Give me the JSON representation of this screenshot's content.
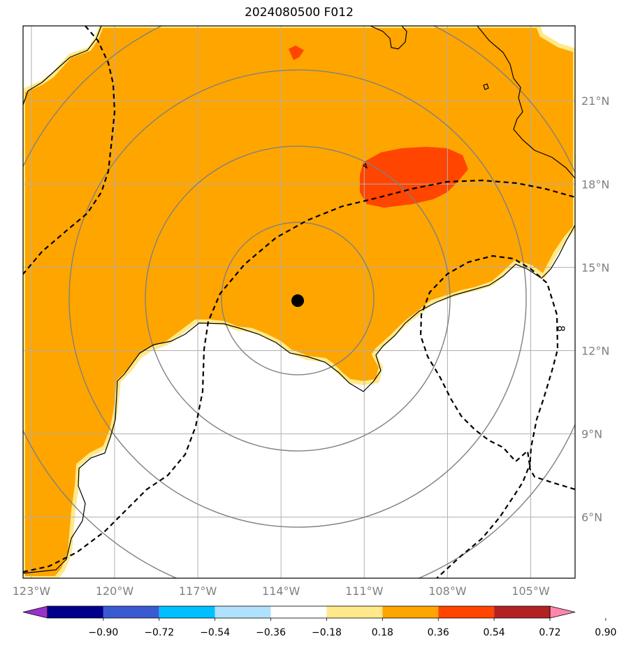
{
  "title": "2024080500 F012",
  "map": {
    "lon_range": [
      -123.3,
      -103.4
    ],
    "lat_range": [
      3.8,
      23.7
    ],
    "lon_ticks": [
      {
        "value": -123,
        "label": "123°W"
      },
      {
        "value": -120,
        "label": "120°W"
      },
      {
        "value": -117,
        "label": "117°W"
      },
      {
        "value": -114,
        "label": "114°W"
      },
      {
        "value": -111,
        "label": "111°W"
      },
      {
        "value": -108,
        "label": "108°W"
      },
      {
        "value": -105,
        "label": "105°W"
      }
    ],
    "lat_ticks": [
      {
        "value": 6,
        "label": "6°N"
      },
      {
        "value": 9,
        "label": "9°N"
      },
      {
        "value": 12,
        "label": "12°N"
      },
      {
        "value": 15,
        "label": "15°N"
      },
      {
        "value": 18,
        "label": "18°N"
      },
      {
        "value": 21,
        "label": "21°N"
      }
    ],
    "storm_center": {
      "lon": -113.4,
      "lat": 13.8
    },
    "range_rings_count": 4,
    "contour_label": "8",
    "colors": {
      "field_main": "#ffa500",
      "field_edge": "#ffe98a",
      "field_high": "#ff4500",
      "ring": "#808080",
      "grid": "#b0b0b0",
      "coast": "#000000"
    }
  },
  "colorbar": {
    "colors": [
      "#9932cc",
      "#00008b",
      "#3a5bd0",
      "#00bfff",
      "#b0e2ff",
      "#ffffff",
      "#ffe98a",
      "#ffa500",
      "#ff4500",
      "#b22222",
      "#ff88aa"
    ],
    "ticks": [
      "−0.90",
      "−0.72",
      "−0.54",
      "−0.36",
      "−0.18",
      "0.18",
      "0.36",
      "0.54",
      "0.72",
      "0.90"
    ]
  }
}
